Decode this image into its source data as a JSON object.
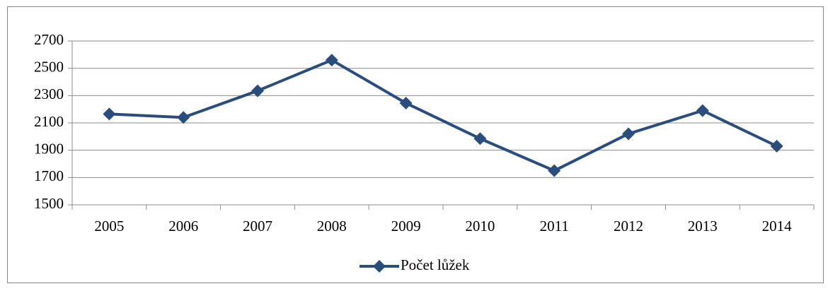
{
  "chart_data": {
    "type": "line",
    "categories": [
      "2005",
      "2006",
      "2007",
      "2008",
      "2009",
      "2010",
      "2011",
      "2012",
      "2013",
      "2014"
    ],
    "series": [
      {
        "name": "Počet lůžek",
        "color": "#2a4d7d",
        "values": [
          2165,
          2140,
          2335,
          2560,
          2245,
          1985,
          1750,
          2020,
          2190,
          1930
        ]
      }
    ],
    "ylim": [
      1500,
      2700
    ],
    "yticks": [
      1500,
      1700,
      1900,
      2100,
      2300,
      2500,
      2700
    ],
    "grid": true,
    "legend": "bottom"
  }
}
